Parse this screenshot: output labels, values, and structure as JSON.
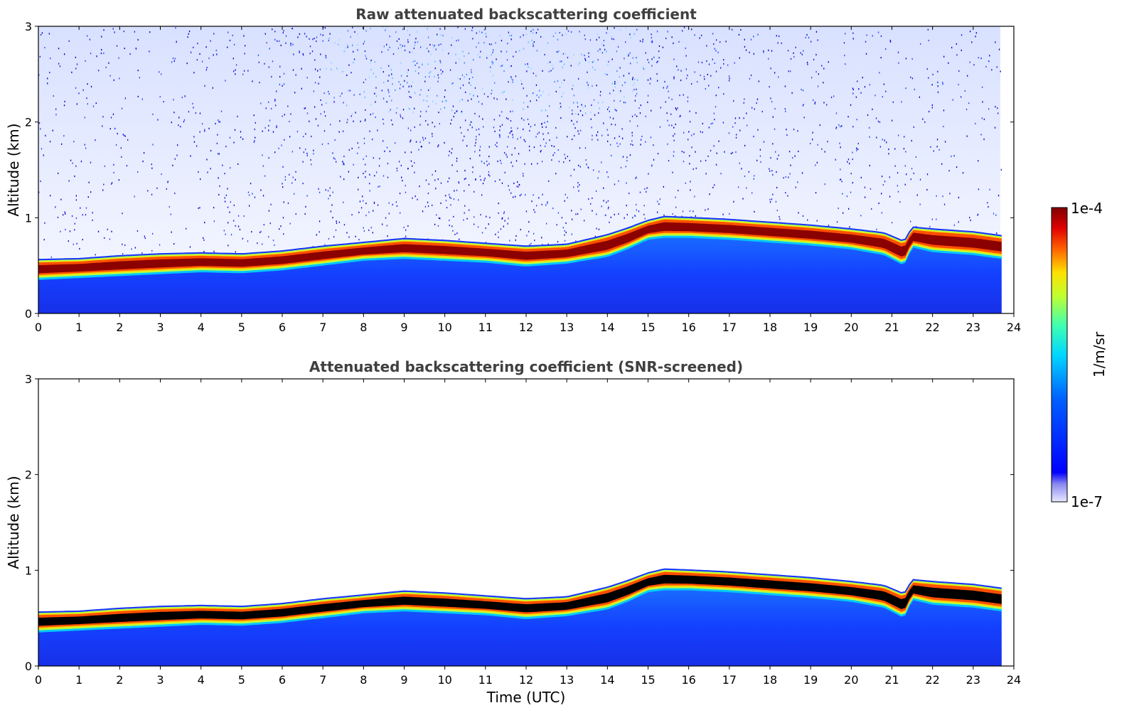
{
  "chart_data": [
    {
      "type": "heatmap",
      "title": "Raw attenuated backscattering coefficient",
      "xlabel": "",
      "ylabel": "Altitude (km)",
      "xlim": [
        0,
        24
      ],
      "ylim": [
        0,
        3
      ],
      "x_ticks": [
        "0",
        "1",
        "2",
        "3",
        "4",
        "5",
        "6",
        "7",
        "8",
        "9",
        "10",
        "11",
        "12",
        "13",
        "14",
        "15",
        "16",
        "17",
        "18",
        "19",
        "20",
        "21",
        "22",
        "23",
        "24"
      ],
      "y_ticks": [
        "0",
        "1",
        "2",
        "3"
      ],
      "data_end_time": 23.7,
      "layer_top_km": {
        "time": [
          0,
          1,
          2,
          3,
          4,
          5,
          6,
          7,
          8,
          9,
          10,
          11,
          12,
          13,
          14,
          14.5,
          15,
          15.4,
          16,
          17,
          18,
          19,
          20,
          20.8,
          21.3,
          21.5,
          22,
          23,
          23.7
        ],
        "values": [
          0.54,
          0.55,
          0.58,
          0.6,
          0.61,
          0.6,
          0.63,
          0.68,
          0.72,
          0.76,
          0.74,
          0.71,
          0.68,
          0.7,
          0.8,
          0.87,
          0.95,
          0.99,
          0.98,
          0.96,
          0.93,
          0.9,
          0.86,
          0.82,
          0.73,
          0.88,
          0.86,
          0.83,
          0.79
        ]
      },
      "layer_bottom_km": {
        "time": [
          0,
          1,
          2,
          3,
          4,
          5,
          6,
          7,
          8,
          9,
          10,
          11,
          12,
          13,
          14,
          14.5,
          15,
          15.4,
          16,
          17,
          18,
          19,
          20,
          20.8,
          21.3,
          21.5,
          22,
          23,
          23.7
        ],
        "values": [
          0.38,
          0.4,
          0.42,
          0.44,
          0.46,
          0.45,
          0.48,
          0.53,
          0.58,
          0.6,
          0.58,
          0.56,
          0.52,
          0.55,
          0.62,
          0.7,
          0.8,
          0.82,
          0.82,
          0.8,
          0.77,
          0.74,
          0.7,
          0.64,
          0.53,
          0.72,
          0.67,
          0.64,
          0.6
        ]
      },
      "colorbar": {
        "label": "1/m/sr",
        "min_label": "1e-7",
        "max_label": "1e-4"
      }
    },
    {
      "type": "heatmap",
      "title": "Attenuated backscattering coefficient (SNR-screened)",
      "xlabel": "Time (UTC)",
      "ylabel": "Altitude (km)",
      "xlim": [
        0,
        24
      ],
      "ylim": [
        0,
        3
      ],
      "x_ticks": [
        "0",
        "1",
        "2",
        "3",
        "4",
        "5",
        "6",
        "7",
        "8",
        "9",
        "10",
        "11",
        "12",
        "13",
        "14",
        "15",
        "16",
        "17",
        "18",
        "19",
        "20",
        "21",
        "22",
        "23",
        "24"
      ],
      "y_ticks": [
        "0",
        "1",
        "2",
        "3"
      ],
      "data_end_time": 23.7
    }
  ],
  "colors": {
    "layer_core_raw": "#8b0000",
    "layer_core_screened": "#000000",
    "below_layer": "#1d3cff",
    "noise": "#1a1adf",
    "title": "#404040"
  }
}
